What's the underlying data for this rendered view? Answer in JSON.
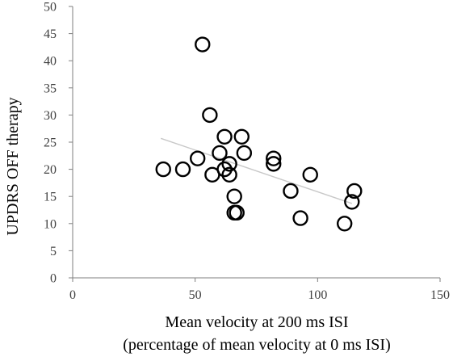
{
  "chart_data": {
    "type": "scatter",
    "title": "",
    "xlabel": "Mean velocity at 200 ms ISI",
    "xlabel_line2": "(percentage of mean velocity at 0 ms ISI)",
    "ylabel": "UPDRS OFF therapy",
    "xlim": [
      0,
      150
    ],
    "ylim": [
      0,
      50
    ],
    "xticks": [
      0,
      50,
      100,
      150
    ],
    "yticks": [
      0,
      5,
      10,
      15,
      20,
      25,
      30,
      35,
      40,
      45,
      50
    ],
    "grid": false,
    "legend": "none",
    "point_color": "#000000",
    "trendline_color": "#c8c8c8",
    "points": [
      {
        "x": 53,
        "y": 43
      },
      {
        "x": 56,
        "y": 30
      },
      {
        "x": 62,
        "y": 26
      },
      {
        "x": 69,
        "y": 26
      },
      {
        "x": 60,
        "y": 23
      },
      {
        "x": 70,
        "y": 23
      },
      {
        "x": 51,
        "y": 22
      },
      {
        "x": 82,
        "y": 22
      },
      {
        "x": 64,
        "y": 21
      },
      {
        "x": 82,
        "y": 21
      },
      {
        "x": 37,
        "y": 20
      },
      {
        "x": 45,
        "y": 20
      },
      {
        "x": 62,
        "y": 20
      },
      {
        "x": 57,
        "y": 19
      },
      {
        "x": 64,
        "y": 19
      },
      {
        "x": 97,
        "y": 19
      },
      {
        "x": 89,
        "y": 16
      },
      {
        "x": 115,
        "y": 16
      },
      {
        "x": 66,
        "y": 15
      },
      {
        "x": 114,
        "y": 14
      },
      {
        "x": 66,
        "y": 12
      },
      {
        "x": 67,
        "y": 12
      },
      {
        "x": 93,
        "y": 11
      },
      {
        "x": 111,
        "y": 10
      }
    ],
    "trendline": {
      "x": [
        36,
        114
      ],
      "y": [
        25.7,
        13.7
      ]
    }
  }
}
